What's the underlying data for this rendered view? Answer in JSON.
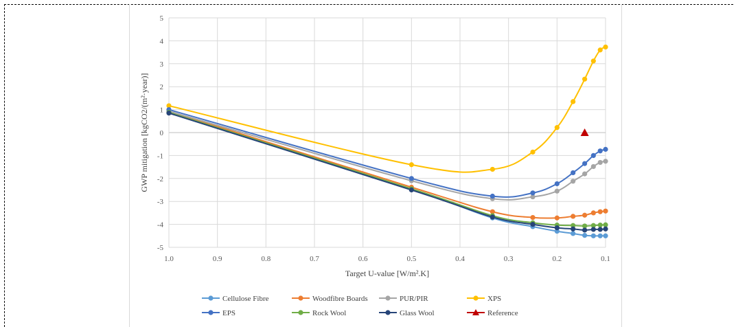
{
  "chart_data": {
    "type": "line",
    "title": "",
    "xlabel": "Target U-value [W/m².K]",
    "ylabel": "GWP mitigation [kgCO2/(m²·year)]",
    "xlim": [
      1.0,
      0.1
    ],
    "x_reversed": true,
    "ylim": [
      -5,
      5
    ],
    "x_ticks": [
      1.0,
      0.9,
      0.8,
      0.7,
      0.6,
      0.5,
      0.4,
      0.3,
      0.2,
      0.1
    ],
    "x_tick_labels": [
      "1.0",
      "0.9",
      "0.8",
      "0.7",
      "0.6",
      "0.5",
      "0.4",
      "0.3",
      "0.2",
      "0.1"
    ],
    "y_ticks": [
      -5,
      -4,
      -3,
      -2,
      -1,
      0,
      1,
      2,
      3,
      4,
      5
    ],
    "grid": "vertical and horizontal",
    "legend_position": "bottom",
    "x": [
      1.0,
      0.5,
      0.333,
      0.25,
      0.2,
      0.167,
      0.143,
      0.125,
      0.111,
      0.1
    ],
    "series": [
      {
        "name": "Cellulose Fibre",
        "color": "#5B9BD5",
        "marker": "circle",
        "values": [
          0.93,
          -2.48,
          -3.72,
          -4.1,
          -4.3,
          -4.4,
          -4.48,
          -4.5,
          -4.5,
          -4.5
        ]
      },
      {
        "name": "Woodfibre Boards",
        "color": "#ED7D31",
        "marker": "circle",
        "values": [
          0.93,
          -2.38,
          -3.45,
          -3.7,
          -3.72,
          -3.65,
          -3.6,
          -3.5,
          -3.45,
          -3.42
        ]
      },
      {
        "name": "PUR/PIR",
        "color": "#A5A5A5",
        "marker": "circle",
        "values": [
          0.93,
          -2.1,
          -2.88,
          -2.8,
          -2.55,
          -2.12,
          -1.8,
          -1.48,
          -1.3,
          -1.25
        ]
      },
      {
        "name": "XPS",
        "color": "#FFC000",
        "marker": "circle",
        "values": [
          1.17,
          -1.4,
          -1.6,
          -0.85,
          0.22,
          1.35,
          2.33,
          3.12,
          3.6,
          3.73
        ]
      },
      {
        "name": "EPS",
        "color": "#4472C4",
        "marker": "circle",
        "values": [
          1.0,
          -2.0,
          -2.77,
          -2.63,
          -2.23,
          -1.75,
          -1.35,
          -1.0,
          -0.8,
          -0.73
        ]
      },
      {
        "name": "Rock Wool",
        "color": "#70AD47",
        "marker": "circle",
        "values": [
          0.88,
          -2.45,
          -3.62,
          -3.93,
          -4.03,
          -4.05,
          -4.07,
          -4.05,
          -4.03,
          -4.02
        ]
      },
      {
        "name": "Glass Wool",
        "color": "#264478",
        "marker": "circle",
        "values": [
          0.85,
          -2.5,
          -3.68,
          -4.0,
          -4.15,
          -4.2,
          -4.25,
          -4.22,
          -4.22,
          -4.2
        ]
      },
      {
        "name": "Reference",
        "color": "#C00000",
        "marker": "triangle",
        "values": [
          null,
          null,
          null,
          null,
          null,
          null,
          0.0,
          null,
          null,
          null
        ]
      }
    ]
  }
}
